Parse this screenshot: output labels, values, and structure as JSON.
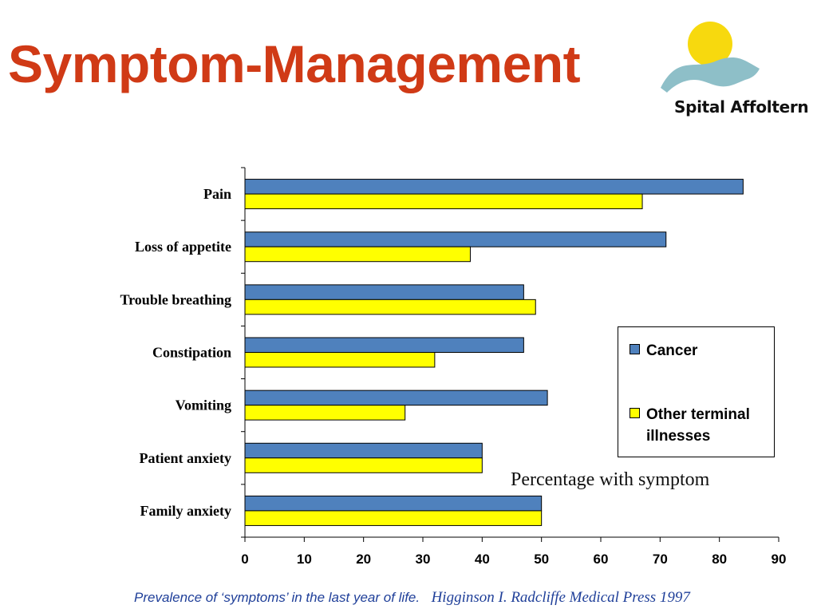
{
  "slide": {
    "title": "Symptom-Management",
    "annotation": "Percentage with symptom",
    "footer_caption": "Prevalence of ‘symptoms’ in the last year of life.",
    "footer_citation": "Higginson I. Radcliffe Medical Press 1997"
  },
  "logo": {
    "text": "Spital Affoltern",
    "icon": "sun-over-waves-logo",
    "sun_color": "#f7d90e",
    "wave_color": "#8ebfc8"
  },
  "colors": {
    "title": "#d03a16",
    "footer": "#1f3f99"
  },
  "chart_data": {
    "type": "bar",
    "orientation": "horizontal",
    "categories": [
      "Pain",
      "Loss of appetite",
      "Trouble breathing",
      "Constipation",
      "Vomiting",
      "Patient anxiety",
      "Family anxiety"
    ],
    "series": [
      {
        "name": "Cancer",
        "color": "#4f81bd",
        "values": [
          84,
          71,
          47,
          47,
          51,
          40,
          50
        ]
      },
      {
        "name": "Other terminal illnesses",
        "color": "#ffff00",
        "values": [
          67,
          38,
          49,
          32,
          27,
          40,
          50
        ]
      }
    ],
    "xlim": [
      0,
      90
    ],
    "xticks": [
      0,
      10,
      20,
      30,
      40,
      50,
      60,
      70,
      80,
      90
    ],
    "xlabel": "",
    "ylabel": "",
    "grid": false,
    "legend_position": "right"
  }
}
